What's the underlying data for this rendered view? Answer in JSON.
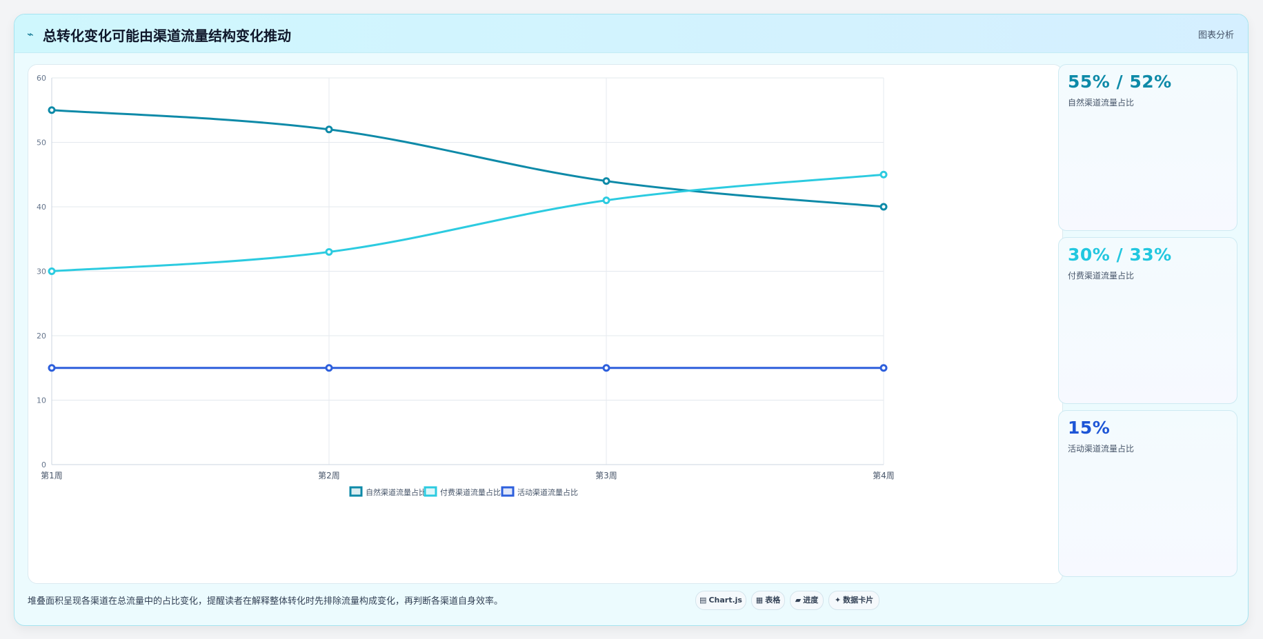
{
  "header": {
    "icon": "trend-arrow-icon",
    "title": "总转化变化可能由渠道流量结构变化推动",
    "right_label": "图表分析"
  },
  "cards": [
    {
      "value": "55% / 52%",
      "label": "自然渠道流量占比",
      "color": "#0e8aa8"
    },
    {
      "value": "30% / 33%",
      "label": "付费渠道流量占比",
      "color": "#22c7df"
    },
    {
      "value": "15%",
      "label": "活动渠道流量占比",
      "color": "#1d55d6"
    }
  ],
  "footer": {
    "note": "堆叠面积呈现各渠道在总流量中的占比变化，提醒读者在解释整体转化时先排除流量构成变化，再判断各渠道自身效率。",
    "tags": [
      {
        "icon": "chart-icon",
        "label": "Chart.js"
      },
      {
        "icon": "table-icon",
        "label": "表格"
      },
      {
        "icon": "progress-icon",
        "label": "进度"
      },
      {
        "icon": "card-icon",
        "label": "数据卡片"
      }
    ]
  },
  "chart_data": {
    "type": "line",
    "categories": [
      "第1周",
      "第2周",
      "第3周",
      "第4周"
    ],
    "series": [
      {
        "name": "自然渠道流量占比",
        "values": [
          55,
          52,
          44,
          40
        ],
        "color": "#0e8aa8"
      },
      {
        "name": "付费渠道流量占比",
        "values": [
          30,
          33,
          41,
          45
        ],
        "color": "#2ccbe0"
      },
      {
        "name": "活动渠道流量占比",
        "values": [
          15,
          15,
          15,
          15
        ],
        "color": "#2d5fdc"
      }
    ],
    "ylim": [
      0,
      60
    ],
    "yticks": [
      0,
      10,
      20,
      30,
      40,
      50,
      60
    ],
    "grid": true,
    "legend": "bottom-center"
  }
}
